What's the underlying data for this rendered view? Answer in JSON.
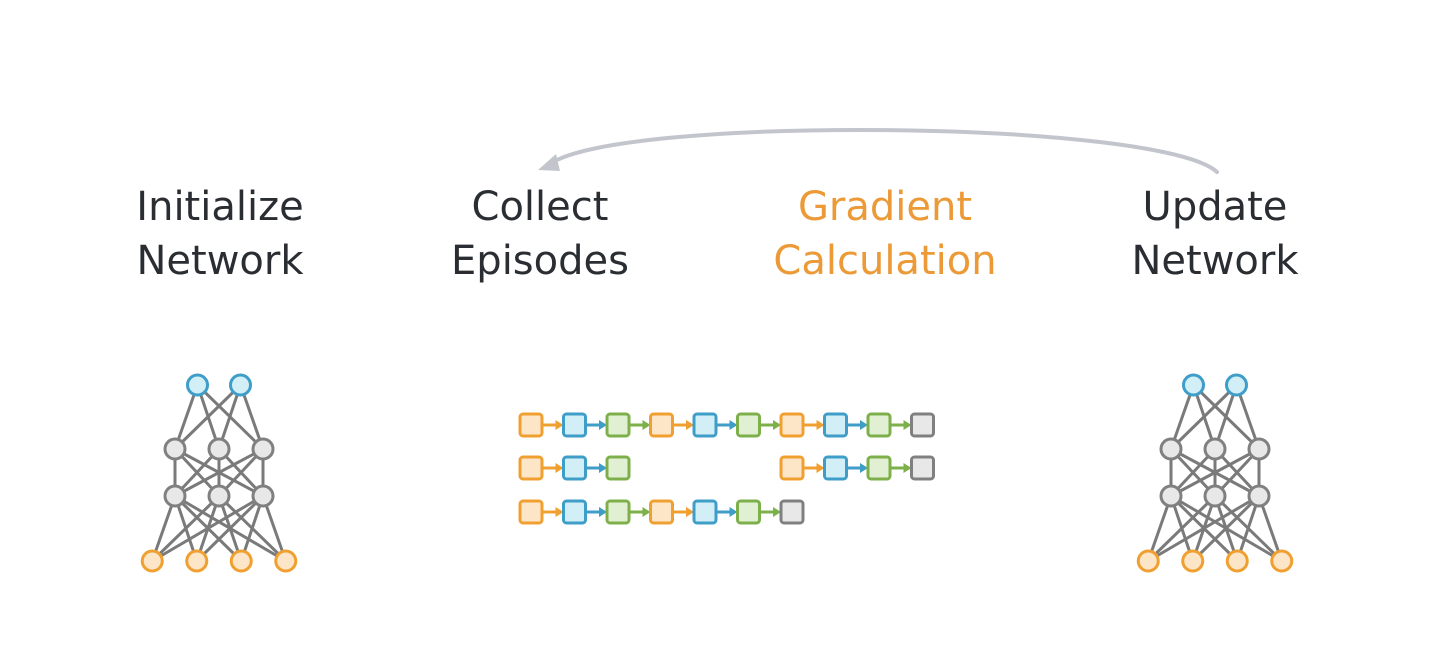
{
  "colors": {
    "text": "#2a2e33",
    "active": "#ec9a37",
    "arrow": "#c2c6cc",
    "orange_stroke": "#f0a030",
    "orange_fill": "#fde5c8",
    "blue_stroke": "#3f9ec8",
    "blue_fill": "#d2eff8",
    "green_stroke": "#7db04a",
    "green_fill": "#e1efd2",
    "gray_stroke": "#808080",
    "gray_fill": "#e8e8e8",
    "edge": "#7a7a7a"
  },
  "steps": [
    {
      "line1": "Initialize",
      "line2": "Network",
      "active": false
    },
    {
      "line1": "Collect",
      "line2": "Episodes",
      "active": false
    },
    {
      "line1": "Gradient",
      "line2": "Calculation",
      "active": true
    },
    {
      "line1": "Update",
      "line2": "Network",
      "active": false
    }
  ],
  "loop_arrow": {
    "from": "Update Network",
    "to": "Collect Episodes"
  },
  "network": {
    "layers": [
      {
        "role": "output",
        "count": 2,
        "color": "blue"
      },
      {
        "role": "hidden",
        "count": 3,
        "color": "gray"
      },
      {
        "role": "hidden",
        "count": 3,
        "color": "gray"
      },
      {
        "role": "input",
        "count": 4,
        "color": "orange"
      }
    ]
  },
  "episodes": [
    {
      "segments": [
        [
          "orange",
          "blue",
          "green",
          "orange",
          "blue",
          "green",
          "orange",
          "blue",
          "green",
          "gray"
        ]
      ]
    },
    {
      "segments": [
        [
          "orange",
          "blue",
          "green"
        ],
        [
          "orange",
          "blue",
          "green",
          "gray"
        ]
      ]
    },
    {
      "segments": [
        [
          "orange",
          "blue",
          "green",
          "orange",
          "blue",
          "green",
          "gray"
        ]
      ]
    }
  ]
}
